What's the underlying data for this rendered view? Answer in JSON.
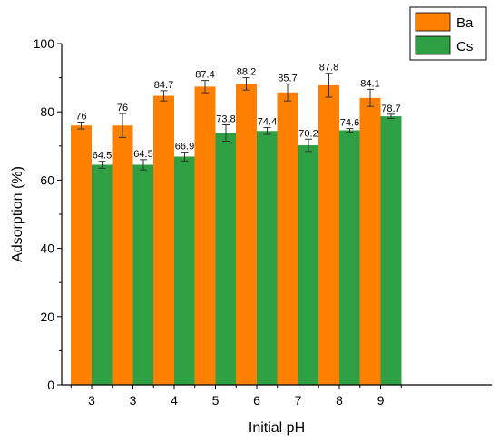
{
  "chart_data": {
    "type": "bar",
    "xlabel": "Initial pH",
    "ylabel": "Adsorption (%)",
    "categories": [
      "3",
      "3",
      "4",
      "5",
      "6",
      "7",
      "8",
      "9"
    ],
    "ylim": [
      0,
      100
    ],
    "yticks": [
      0,
      20,
      40,
      60,
      80,
      100
    ],
    "grid": false,
    "legend_position": "top-right",
    "series": [
      {
        "name": "Ba",
        "color": "#ff8000",
        "values": [
          76,
          76,
          84.7,
          87.4,
          88.2,
          85.7,
          87.8,
          84.1
        ],
        "labels": [
          "76",
          "76",
          "84.7",
          "87.4",
          "88.2",
          "85.7",
          "87.8",
          "84.1"
        ],
        "errors": [
          1,
          3.5,
          1.5,
          1.8,
          1.8,
          2.5,
          3.5,
          2.5
        ]
      },
      {
        "name": "Cs",
        "color": "#2ea043",
        "values": [
          64.5,
          64.5,
          66.9,
          73.8,
          74.4,
          70.2,
          74.6,
          78.7
        ],
        "labels": [
          "64.5",
          "64.5",
          "66.9",
          "73.8",
          "74.4",
          "70.2",
          "74.6",
          "78.7"
        ],
        "errors": [
          1,
          1.5,
          1.3,
          2.4,
          1,
          1.8,
          0.5,
          0.6
        ]
      }
    ]
  }
}
